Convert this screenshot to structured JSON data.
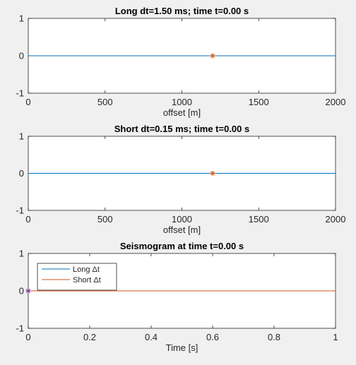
{
  "chart_data": [
    {
      "type": "line",
      "title": "Long dt=1.50 ms; time t=0.00 s",
      "xlabel": "offset [m]",
      "ylabel": "",
      "xlim": [
        0,
        2000
      ],
      "ylim": [
        -1,
        1
      ],
      "xticks": [
        "0",
        "500",
        "1000",
        "1500",
        "2000"
      ],
      "yticks": [
        "-1",
        "0",
        "1"
      ],
      "series": [
        {
          "x": [
            0,
            2000
          ],
          "y": [
            0,
            0
          ],
          "color": "#0072bd"
        }
      ],
      "marker": {
        "x": 1200,
        "y": 0,
        "symbol": "*",
        "color": "#d95319"
      }
    },
    {
      "type": "line",
      "title": "Short dt=0.15 ms; time t=0.00 s",
      "xlabel": "offset [m]",
      "ylabel": "",
      "xlim": [
        0,
        2000
      ],
      "ylim": [
        -1,
        1
      ],
      "xticks": [
        "0",
        "500",
        "1000",
        "1500",
        "2000"
      ],
      "yticks": [
        "-1",
        "0",
        "1"
      ],
      "series": [
        {
          "x": [
            0,
            2000
          ],
          "y": [
            0,
            0
          ],
          "color": "#0072bd"
        }
      ],
      "marker": {
        "x": 1200,
        "y": 0,
        "symbol": "*",
        "color": "#d95319"
      }
    },
    {
      "type": "line",
      "title": "Seismogram at time t=0.00 s",
      "xlabel": "Time [s]",
      "ylabel": "",
      "xlim": [
        0,
        1
      ],
      "ylim": [
        -1,
        1
      ],
      "xticks": [
        "0",
        "0.2",
        "0.4",
        "0.6",
        "0.8",
        "1"
      ],
      "yticks": [
        "-1",
        "0",
        "1"
      ],
      "legend_position": "top-left",
      "series": [
        {
          "name": "Long Δt",
          "x": [
            0,
            1
          ],
          "y": [
            0,
            0
          ],
          "color": "#0072bd"
        },
        {
          "name": "Short Δt",
          "x": [
            0,
            1
          ],
          "y": [
            0,
            0
          ],
          "color": "#d95319"
        }
      ],
      "marker": {
        "x": 0,
        "y": 0,
        "symbol": "*",
        "color": "#7e2f8e"
      }
    }
  ]
}
